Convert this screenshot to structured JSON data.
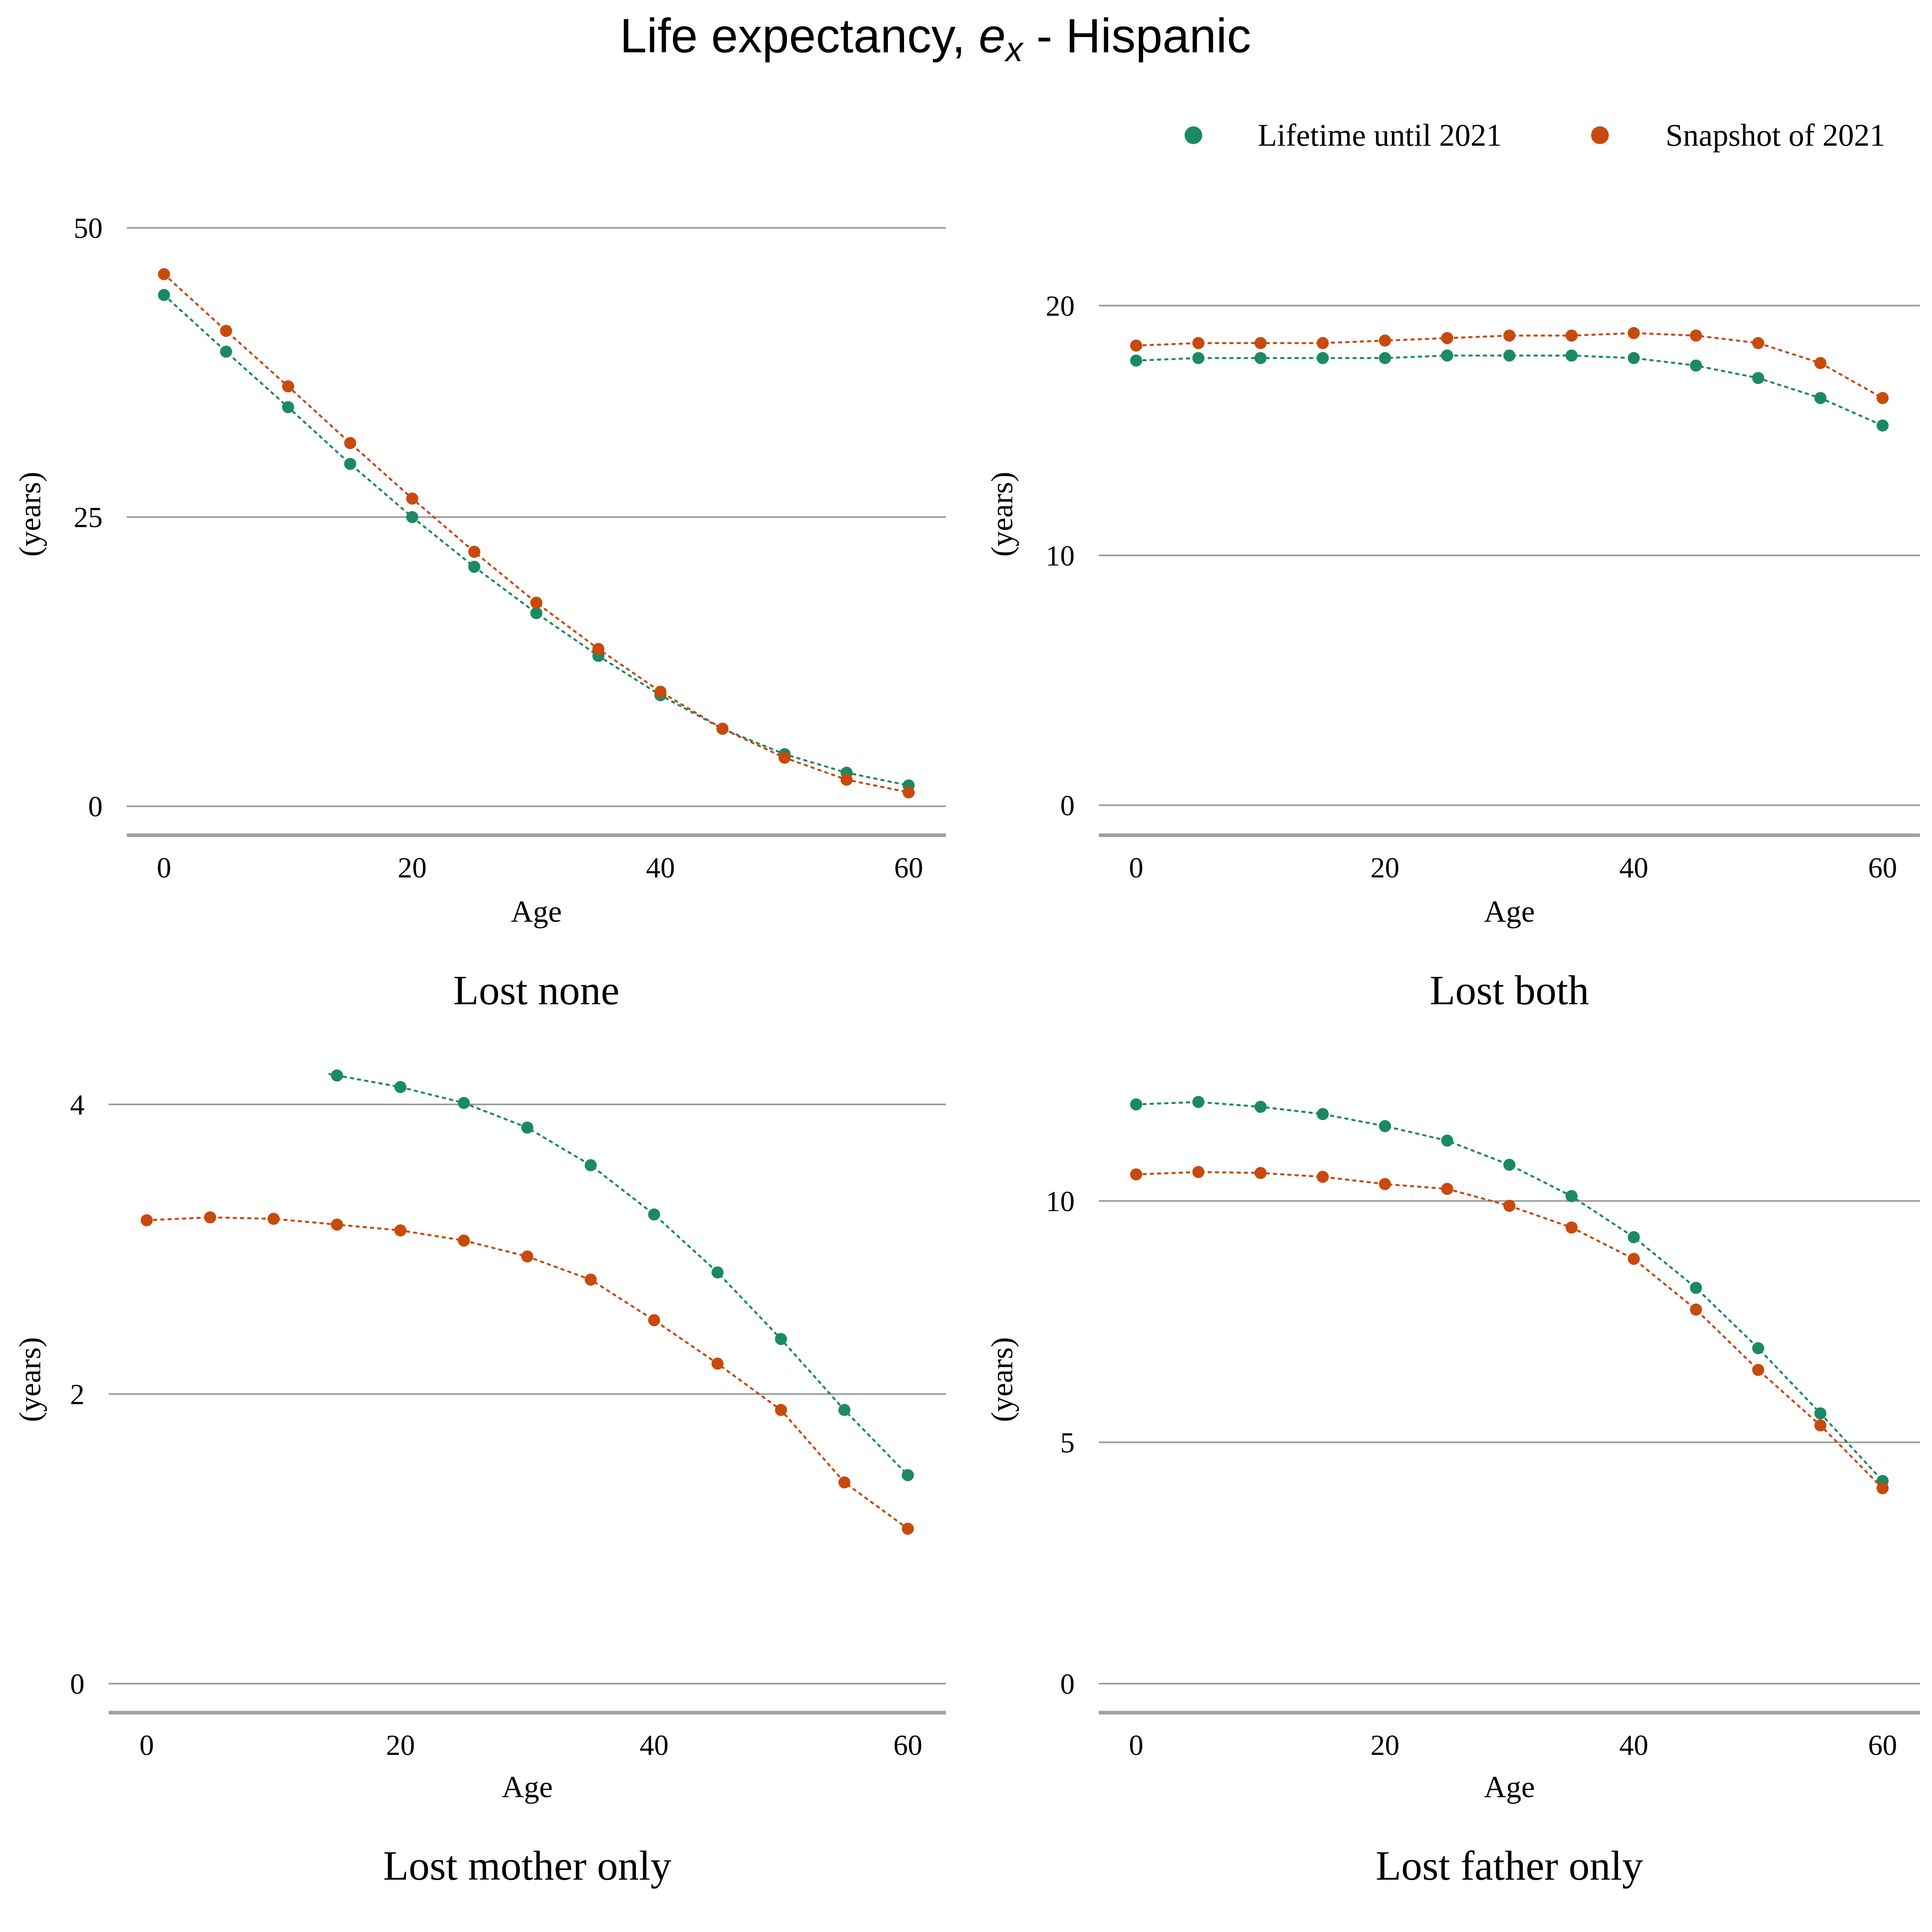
{
  "title_main": "Life expectancy, ",
  "title_symbol": "e",
  "title_subscript": "x",
  "title_suffix": " - Hispanic",
  "legend": [
    {
      "label": "Lifetime until 2021",
      "color": "#1b8a63"
    },
    {
      "label": "Snapshot of 2021",
      "color": "#c84a0c"
    }
  ],
  "colors": {
    "gridline": "#9a9a9a",
    "baseline": "#a0a0a0"
  },
  "chart_data": [
    {
      "type": "scatter",
      "panel_title": "Lost none",
      "xlabel": "Age",
      "ylabel": "(years)",
      "xlim": [
        -3,
        63
      ],
      "ylim": [
        -2.5,
        53
      ],
      "xticks": [
        0,
        20,
        40,
        60
      ],
      "yticks": [
        0,
        25,
        50
      ],
      "grid": true,
      "x": [
        0,
        5,
        10,
        15,
        20,
        25,
        30,
        35,
        40,
        45,
        50,
        55,
        60
      ],
      "series": [
        {
          "name": "Lifetime until 2021",
          "values": [
            44.2,
            39.3,
            34.5,
            29.6,
            25.0,
            20.7,
            16.7,
            13.0,
            9.6,
            6.7,
            4.5,
            2.9,
            1.8
          ]
        },
        {
          "name": "Snapshot of 2021",
          "values": [
            46.0,
            41.1,
            36.3,
            31.4,
            26.6,
            22.0,
            17.6,
            13.6,
            9.9,
            6.7,
            4.2,
            2.3,
            1.2
          ]
        }
      ]
    },
    {
      "type": "scatter",
      "panel_title": "Lost both",
      "xlabel": "Age",
      "ylabel": "(years)",
      "xlim": [
        -3,
        63
      ],
      "ylim": [
        -1.2,
        24.5
      ],
      "xticks": [
        0,
        20,
        40,
        60
      ],
      "yticks": [
        0,
        10,
        20
      ],
      "grid": true,
      "x": [
        0,
        5,
        10,
        15,
        20,
        25,
        30,
        35,
        40,
        45,
        50,
        55,
        60
      ],
      "series": [
        {
          "name": "Lifetime until 2021",
          "values": [
            17.8,
            17.9,
            17.9,
            17.9,
            17.9,
            18.0,
            18.0,
            18.0,
            17.9,
            17.6,
            17.1,
            16.3,
            15.2
          ]
        },
        {
          "name": "Snapshot of 2021",
          "values": [
            18.4,
            18.5,
            18.5,
            18.5,
            18.6,
            18.7,
            18.8,
            18.8,
            18.9,
            18.8,
            18.5,
            17.7,
            16.3
          ]
        }
      ]
    },
    {
      "type": "scatter",
      "panel_title": "Lost mother only",
      "xlabel": "Age",
      "ylabel": "(years)",
      "xlim": [
        -3,
        63
      ],
      "ylim": [
        -0.2,
        4.4
      ],
      "xticks": [
        0,
        20,
        40,
        60
      ],
      "yticks": [
        0,
        2,
        4
      ],
      "grid": true,
      "x": [
        0,
        5,
        10,
        15,
        20,
        25,
        30,
        35,
        40,
        45,
        50,
        55,
        60
      ],
      "series": [
        {
          "name": "Lifetime until 2021",
          "values": [
            null,
            null,
            null,
            4.2,
            4.12,
            4.01,
            3.84,
            3.58,
            3.24,
            2.84,
            2.38,
            1.89,
            1.44
          ]
        },
        {
          "name": "Snapshot of 2021",
          "values": [
            3.2,
            3.22,
            3.21,
            3.17,
            3.13,
            3.06,
            2.95,
            2.79,
            2.51,
            2.21,
            1.89,
            1.39,
            1.07
          ]
        }
      ]
    },
    {
      "type": "scatter",
      "panel_title": "Lost father only",
      "xlabel": "Age",
      "ylabel": "(years)",
      "xlim": [
        -3,
        63
      ],
      "ylim": [
        -0.6,
        13.2
      ],
      "xticks": [
        0,
        20,
        40,
        60
      ],
      "yticks": [
        0,
        5,
        10
      ],
      "grid": true,
      "x": [
        0,
        5,
        10,
        15,
        20,
        25,
        30,
        35,
        40,
        45,
        50,
        55,
        60
      ],
      "series": [
        {
          "name": "Lifetime until 2021",
          "values": [
            12.0,
            12.05,
            11.95,
            11.8,
            11.55,
            11.25,
            10.75,
            10.1,
            9.25,
            8.2,
            6.95,
            5.6,
            4.2
          ]
        },
        {
          "name": "Snapshot of 2021",
          "values": [
            10.55,
            10.6,
            10.58,
            10.5,
            10.35,
            10.25,
            9.9,
            9.45,
            8.8,
            7.75,
            6.5,
            5.35,
            4.05
          ]
        }
      ]
    }
  ]
}
